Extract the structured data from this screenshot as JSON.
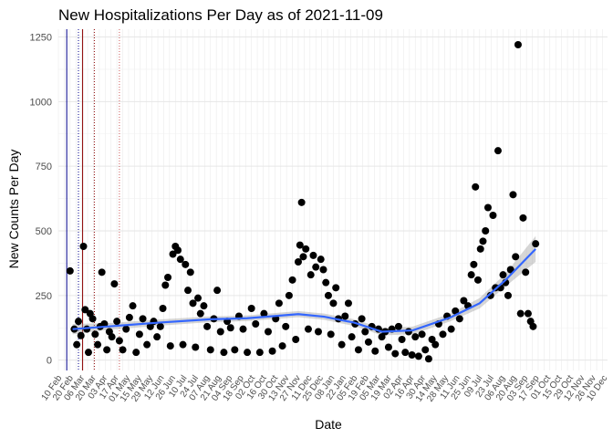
{
  "chart_data": {
    "type": "scatter",
    "title": "New Hospitalizations Per Day as of 2021-11-09",
    "xlabel": "Date",
    "ylabel": "New Counts Per Day",
    "ylim": [
      -40,
      1280
    ],
    "xlim": [
      "2020-03-03",
      "2021-12-20"
    ],
    "yticks": [
      0,
      250,
      500,
      750,
      1000,
      1250
    ],
    "grid": true,
    "xticks_note": "weekly date ticks, overlapping rotated labels",
    "x_tick_labels": [
      "10 Feb",
      "20 Feb",
      "06 Mar",
      "20 Mar",
      "03 Apr",
      "17 Apr",
      "01 May",
      "15 May",
      "29 May",
      "12 Jun",
      "26 Jun",
      "10 Jul",
      "24 Jul",
      "07 Aug",
      "21 Aug",
      "04 Sep",
      "18 Sep",
      "02 Oct",
      "16 Oct",
      "30 Oct",
      "13 Nov",
      "27 Nov",
      "11 Dec",
      "25 Dec",
      "08 Jan",
      "22 Jan",
      "05 Feb",
      "19 Feb",
      "05 Mar",
      "19 Mar",
      "02 Apr",
      "16 Apr",
      "30 Apr",
      "14 May",
      "28 May",
      "11 Jun",
      "25 Jun",
      "09 Jul",
      "23 Jul",
      "06 Aug",
      "20 Aug",
      "03 Sep",
      "17 Sep",
      "01 Oct",
      "15 Oct",
      "29 Oct",
      "12 Nov",
      "26 Nov",
      "10 Dec"
    ],
    "vertical_lines": [
      {
        "date": "2020-03-13",
        "color": "#00008b",
        "style": "solid"
      },
      {
        "date": "2020-03-27",
        "color": "#00008b",
        "style": "dotted"
      },
      {
        "date": "2020-04-01",
        "color": "#8b0000",
        "style": "solid"
      },
      {
        "date": "2020-04-15",
        "color": "#8b0000",
        "style": "dotted"
      },
      {
        "date": "2020-05-15",
        "color": "#cd5c5c",
        "style": "dotted"
      }
    ],
    "series": [
      {
        "kind": "points",
        "color": "#000000",
        "points": [
          {
            "x": "2020-03-17",
            "y": 345
          },
          {
            "x": "2020-03-22",
            "y": 120
          },
          {
            "x": "2020-03-25",
            "y": 60
          },
          {
            "x": "2020-03-27",
            "y": 150
          },
          {
            "x": "2020-03-30",
            "y": 95
          },
          {
            "x": "2020-04-02",
            "y": 440
          },
          {
            "x": "2020-04-04",
            "y": 195
          },
          {
            "x": "2020-04-06",
            "y": 120
          },
          {
            "x": "2020-04-08",
            "y": 30
          },
          {
            "x": "2020-04-10",
            "y": 180
          },
          {
            "x": "2020-04-13",
            "y": 160
          },
          {
            "x": "2020-04-16",
            "y": 100
          },
          {
            "x": "2020-04-19",
            "y": 60
          },
          {
            "x": "2020-04-22",
            "y": 130
          },
          {
            "x": "2020-04-24",
            "y": 340
          },
          {
            "x": "2020-04-27",
            "y": 140
          },
          {
            "x": "2020-04-30",
            "y": 40
          },
          {
            "x": "2020-05-03",
            "y": 110
          },
          {
            "x": "2020-05-06",
            "y": 90
          },
          {
            "x": "2020-05-09",
            "y": 295
          },
          {
            "x": "2020-05-12",
            "y": 150
          },
          {
            "x": "2020-05-15",
            "y": 75
          },
          {
            "x": "2020-05-19",
            "y": 40
          },
          {
            "x": "2020-05-23",
            "y": 120
          },
          {
            "x": "2020-05-27",
            "y": 165
          },
          {
            "x": "2020-05-31",
            "y": 210
          },
          {
            "x": "2020-06-04",
            "y": 30
          },
          {
            "x": "2020-06-08",
            "y": 100
          },
          {
            "x": "2020-06-12",
            "y": 160
          },
          {
            "x": "2020-06-17",
            "y": 60
          },
          {
            "x": "2020-06-21",
            "y": 130
          },
          {
            "x": "2020-06-25",
            "y": 150
          },
          {
            "x": "2020-06-29",
            "y": 90
          },
          {
            "x": "2020-07-03",
            "y": 130
          },
          {
            "x": "2020-07-06",
            "y": 200
          },
          {
            "x": "2020-07-09",
            "y": 290
          },
          {
            "x": "2020-07-12",
            "y": 320
          },
          {
            "x": "2020-07-15",
            "y": 55
          },
          {
            "x": "2020-07-18",
            "y": 410
          },
          {
            "x": "2020-07-21",
            "y": 440
          },
          {
            "x": "2020-07-24",
            "y": 425
          },
          {
            "x": "2020-07-27",
            "y": 390
          },
          {
            "x": "2020-07-30",
            "y": 60
          },
          {
            "x": "2020-08-02",
            "y": 370
          },
          {
            "x": "2020-08-05",
            "y": 270
          },
          {
            "x": "2020-08-08",
            "y": 340
          },
          {
            "x": "2020-08-11",
            "y": 220
          },
          {
            "x": "2020-08-14",
            "y": 50
          },
          {
            "x": "2020-08-17",
            "y": 240
          },
          {
            "x": "2020-08-20",
            "y": 180
          },
          {
            "x": "2020-08-24",
            "y": 210
          },
          {
            "x": "2020-08-28",
            "y": 130
          },
          {
            "x": "2020-09-01",
            "y": 40
          },
          {
            "x": "2020-09-05",
            "y": 160
          },
          {
            "x": "2020-09-09",
            "y": 270
          },
          {
            "x": "2020-09-13",
            "y": 110
          },
          {
            "x": "2020-09-17",
            "y": 30
          },
          {
            "x": "2020-09-21",
            "y": 150
          },
          {
            "x": "2020-09-25",
            "y": 125
          },
          {
            "x": "2020-09-30",
            "y": 40
          },
          {
            "x": "2020-10-05",
            "y": 170
          },
          {
            "x": "2020-10-10",
            "y": 120
          },
          {
            "x": "2020-10-15",
            "y": 30
          },
          {
            "x": "2020-10-20",
            "y": 200
          },
          {
            "x": "2020-10-25",
            "y": 140
          },
          {
            "x": "2020-10-30",
            "y": 30
          },
          {
            "x": "2020-11-04",
            "y": 180
          },
          {
            "x": "2020-11-09",
            "y": 110
          },
          {
            "x": "2020-11-14",
            "y": 35
          },
          {
            "x": "2020-11-18",
            "y": 160
          },
          {
            "x": "2020-11-22",
            "y": 220
          },
          {
            "x": "2020-11-26",
            "y": 55
          },
          {
            "x": "2020-11-30",
            "y": 130
          },
          {
            "x": "2020-12-04",
            "y": 250
          },
          {
            "x": "2020-12-08",
            "y": 310
          },
          {
            "x": "2020-12-12",
            "y": 80
          },
          {
            "x": "2020-12-15",
            "y": 380
          },
          {
            "x": "2020-12-17",
            "y": 445
          },
          {
            "x": "2020-12-19",
            "y": 610
          },
          {
            "x": "2020-12-21",
            "y": 400
          },
          {
            "x": "2020-12-24",
            "y": 430
          },
          {
            "x": "2020-12-27",
            "y": 120
          },
          {
            "x": "2020-12-30",
            "y": 330
          },
          {
            "x": "2021-01-02",
            "y": 405
          },
          {
            "x": "2021-01-05",
            "y": 360
          },
          {
            "x": "2021-01-08",
            "y": 110
          },
          {
            "x": "2021-01-11",
            "y": 390
          },
          {
            "x": "2021-01-14",
            "y": 350
          },
          {
            "x": "2021-01-17",
            "y": 300
          },
          {
            "x": "2021-01-20",
            "y": 250
          },
          {
            "x": "2021-01-23",
            "y": 100
          },
          {
            "x": "2021-01-26",
            "y": 220
          },
          {
            "x": "2021-01-29",
            "y": 280
          },
          {
            "x": "2021-02-01",
            "y": 160
          },
          {
            "x": "2021-02-05",
            "y": 60
          },
          {
            "x": "2021-02-09",
            "y": 170
          },
          {
            "x": "2021-02-13",
            "y": 220
          },
          {
            "x": "2021-02-17",
            "y": 90
          },
          {
            "x": "2021-02-21",
            "y": 140
          },
          {
            "x": "2021-02-25",
            "y": 40
          },
          {
            "x": "2021-03-01",
            "y": 160
          },
          {
            "x": "2021-03-05",
            "y": 110
          },
          {
            "x": "2021-03-09",
            "y": 70
          },
          {
            "x": "2021-03-13",
            "y": 130
          },
          {
            "x": "2021-03-17",
            "y": 35
          },
          {
            "x": "2021-03-21",
            "y": 120
          },
          {
            "x": "2021-03-25",
            "y": 90
          },
          {
            "x": "2021-03-29",
            "y": 110
          },
          {
            "x": "2021-04-02",
            "y": 50
          },
          {
            "x": "2021-04-06",
            "y": 120
          },
          {
            "x": "2021-04-10",
            "y": 25
          },
          {
            "x": "2021-04-14",
            "y": 130
          },
          {
            "x": "2021-04-18",
            "y": 80
          },
          {
            "x": "2021-04-22",
            "y": 30
          },
          {
            "x": "2021-04-26",
            "y": 110
          },
          {
            "x": "2021-04-30",
            "y": 20
          },
          {
            "x": "2021-05-04",
            "y": 90
          },
          {
            "x": "2021-05-08",
            "y": 15
          },
          {
            "x": "2021-05-12",
            "y": 100
          },
          {
            "x": "2021-05-16",
            "y": 40
          },
          {
            "x": "2021-05-20",
            "y": 5
          },
          {
            "x": "2021-05-24",
            "y": 80
          },
          {
            "x": "2021-05-28",
            "y": 60
          },
          {
            "x": "2021-06-01",
            "y": 140
          },
          {
            "x": "2021-06-06",
            "y": 100
          },
          {
            "x": "2021-06-11",
            "y": 170
          },
          {
            "x": "2021-06-16",
            "y": 120
          },
          {
            "x": "2021-06-21",
            "y": 190
          },
          {
            "x": "2021-06-26",
            "y": 160
          },
          {
            "x": "2021-07-01",
            "y": 230
          },
          {
            "x": "2021-07-06",
            "y": 210
          },
          {
            "x": "2021-07-10",
            "y": 330
          },
          {
            "x": "2021-07-13",
            "y": 370
          },
          {
            "x": "2021-07-15",
            "y": 670
          },
          {
            "x": "2021-07-18",
            "y": 310
          },
          {
            "x": "2021-07-21",
            "y": 430
          },
          {
            "x": "2021-07-24",
            "y": 460
          },
          {
            "x": "2021-07-27",
            "y": 500
          },
          {
            "x": "2021-07-30",
            "y": 590
          },
          {
            "x": "2021-08-02",
            "y": 250
          },
          {
            "x": "2021-08-05",
            "y": 560
          },
          {
            "x": "2021-08-08",
            "y": 280
          },
          {
            "x": "2021-08-11",
            "y": 810
          },
          {
            "x": "2021-08-14",
            "y": 280
          },
          {
            "x": "2021-08-17",
            "y": 330
          },
          {
            "x": "2021-08-20",
            "y": 300
          },
          {
            "x": "2021-08-23",
            "y": 250
          },
          {
            "x": "2021-08-26",
            "y": 350
          },
          {
            "x": "2021-08-29",
            "y": 640
          },
          {
            "x": "2021-09-01",
            "y": 400
          },
          {
            "x": "2021-09-04",
            "y": 1220
          },
          {
            "x": "2021-09-07",
            "y": 180
          },
          {
            "x": "2021-09-10",
            "y": 550
          },
          {
            "x": "2021-09-13",
            "y": 340
          },
          {
            "x": "2021-09-16",
            "y": 180
          },
          {
            "x": "2021-09-19",
            "y": 150
          },
          {
            "x": "2021-09-22",
            "y": 130
          },
          {
            "x": "2021-09-25",
            "y": 450
          }
        ]
      },
      {
        "kind": "smooth",
        "color": "#3366ff",
        "band_color": "#999999",
        "points": [
          {
            "x": "2020-03-20",
            "y": 120,
            "lo": 100,
            "hi": 140
          },
          {
            "x": "2020-05-01",
            "y": 130,
            "lo": 117,
            "hi": 143
          },
          {
            "x": "2020-07-01",
            "y": 145,
            "lo": 133,
            "hi": 157
          },
          {
            "x": "2020-09-01",
            "y": 158,
            "lo": 147,
            "hi": 169
          },
          {
            "x": "2020-10-15",
            "y": 162,
            "lo": 151,
            "hi": 173
          },
          {
            "x": "2020-12-15",
            "y": 178,
            "lo": 166,
            "hi": 190
          },
          {
            "x": "2021-01-15",
            "y": 168,
            "lo": 156,
            "hi": 180
          },
          {
            "x": "2021-02-20",
            "y": 145,
            "lo": 132,
            "hi": 158
          },
          {
            "x": "2021-03-25",
            "y": 110,
            "lo": 96,
            "hi": 124
          },
          {
            "x": "2021-05-01",
            "y": 115,
            "lo": 100,
            "hi": 130
          },
          {
            "x": "2021-06-15",
            "y": 165,
            "lo": 150,
            "hi": 180
          },
          {
            "x": "2021-07-20",
            "y": 220,
            "lo": 200,
            "hi": 240
          },
          {
            "x": "2021-08-20",
            "y": 310,
            "lo": 285,
            "hi": 335
          },
          {
            "x": "2021-09-25",
            "y": 430,
            "lo": 380,
            "hi": 480
          }
        ]
      }
    ]
  }
}
